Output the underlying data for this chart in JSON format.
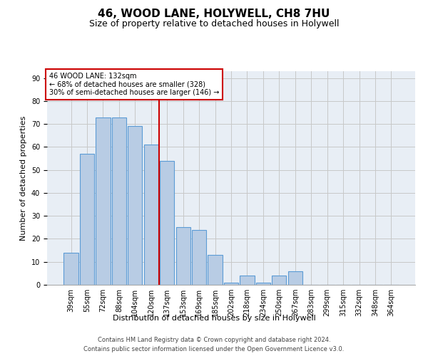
{
  "title1": "46, WOOD LANE, HOLYWELL, CH8 7HU",
  "title2": "Size of property relative to detached houses in Holywell",
  "xlabel": "Distribution of detached houses by size in Holywell",
  "ylabel": "Number of detached properties",
  "categories": [
    "39sqm",
    "55sqm",
    "72sqm",
    "88sqm",
    "104sqm",
    "120sqm",
    "137sqm",
    "153sqm",
    "169sqm",
    "185sqm",
    "202sqm",
    "218sqm",
    "234sqm",
    "250sqm",
    "267sqm",
    "283sqm",
    "299sqm",
    "315sqm",
    "332sqm",
    "348sqm",
    "364sqm"
  ],
  "values": [
    14,
    57,
    73,
    73,
    69,
    61,
    54,
    25,
    24,
    13,
    1,
    4,
    1,
    4,
    6,
    0,
    0,
    0,
    0,
    0,
    0
  ],
  "bar_color": "#b8cce4",
  "bar_edge_color": "#5b9bd5",
  "grid_color": "#c8c8c8",
  "bg_color": "#e8eef5",
  "annotation_box_color": "#cc0000",
  "vline_color": "#cc0000",
  "vline_x": 5.5,
  "annotation_text_line1": "46 WOOD LANE: 132sqm",
  "annotation_text_line2": "← 68% of detached houses are smaller (328)",
  "annotation_text_line3": "30% of semi-detached houses are larger (146) →",
  "ylim": [
    0,
    93
  ],
  "yticks": [
    0,
    10,
    20,
    30,
    40,
    50,
    60,
    70,
    80,
    90
  ],
  "footer1": "Contains HM Land Registry data © Crown copyright and database right 2024.",
  "footer2": "Contains public sector information licensed under the Open Government Licence v3.0.",
  "title1_fontsize": 11,
  "title2_fontsize": 9,
  "ylabel_fontsize": 8,
  "xlabel_fontsize": 8,
  "tick_fontsize": 7,
  "footer_fontsize": 6,
  "ann_fontsize": 7
}
